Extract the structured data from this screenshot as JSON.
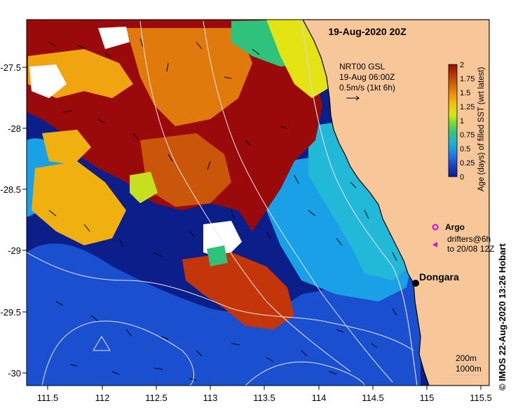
{
  "map": {
    "title": "19-Aug-2020 20Z",
    "current_info": {
      "line1": "NRT00 GSL",
      "line2": "19-Aug 06:00Z",
      "line3": "0.5m/s (1kt 6h)"
    },
    "legend": {
      "argo_label": "Argo",
      "drifters_line1": "drifters@6h",
      "drifters_line2": "to 20/08 12Z",
      "argo_color": "#e000e0"
    },
    "place": {
      "name": "Dongara"
    },
    "depth_labels": {
      "shallow": "200m",
      "deep": "1000m"
    },
    "lon_ticks": [
      "111.5",
      "112",
      "112.5",
      "113",
      "113.5",
      "114",
      "114.5",
      "115",
      "115.5"
    ],
    "lat_ticks": [
      "-27.5",
      "-28",
      "-28.5",
      "-29",
      "-29.5",
      "-30"
    ],
    "colorbar": {
      "title": "Age (days) of filled SST (wrt latest)",
      "ticks": [
        "2",
        "1.75",
        "1.5",
        "1.25",
        "1",
        "0.75",
        "0.5",
        "0.25",
        "0"
      ],
      "colors": [
        "#9b0a0a",
        "#c24a08",
        "#e8880c",
        "#f5c010",
        "#d6e620",
        "#8ae028",
        "#36c47a",
        "#19b4d6",
        "#1a7ef0",
        "#1a44c8",
        "#0b1e8a"
      ]
    },
    "credit": "© IMOS 22-Aug-2020 13:26 Hobart",
    "colors": {
      "land": "#f7c79a",
      "ocean_deep": "#0b1e8a"
    }
  }
}
